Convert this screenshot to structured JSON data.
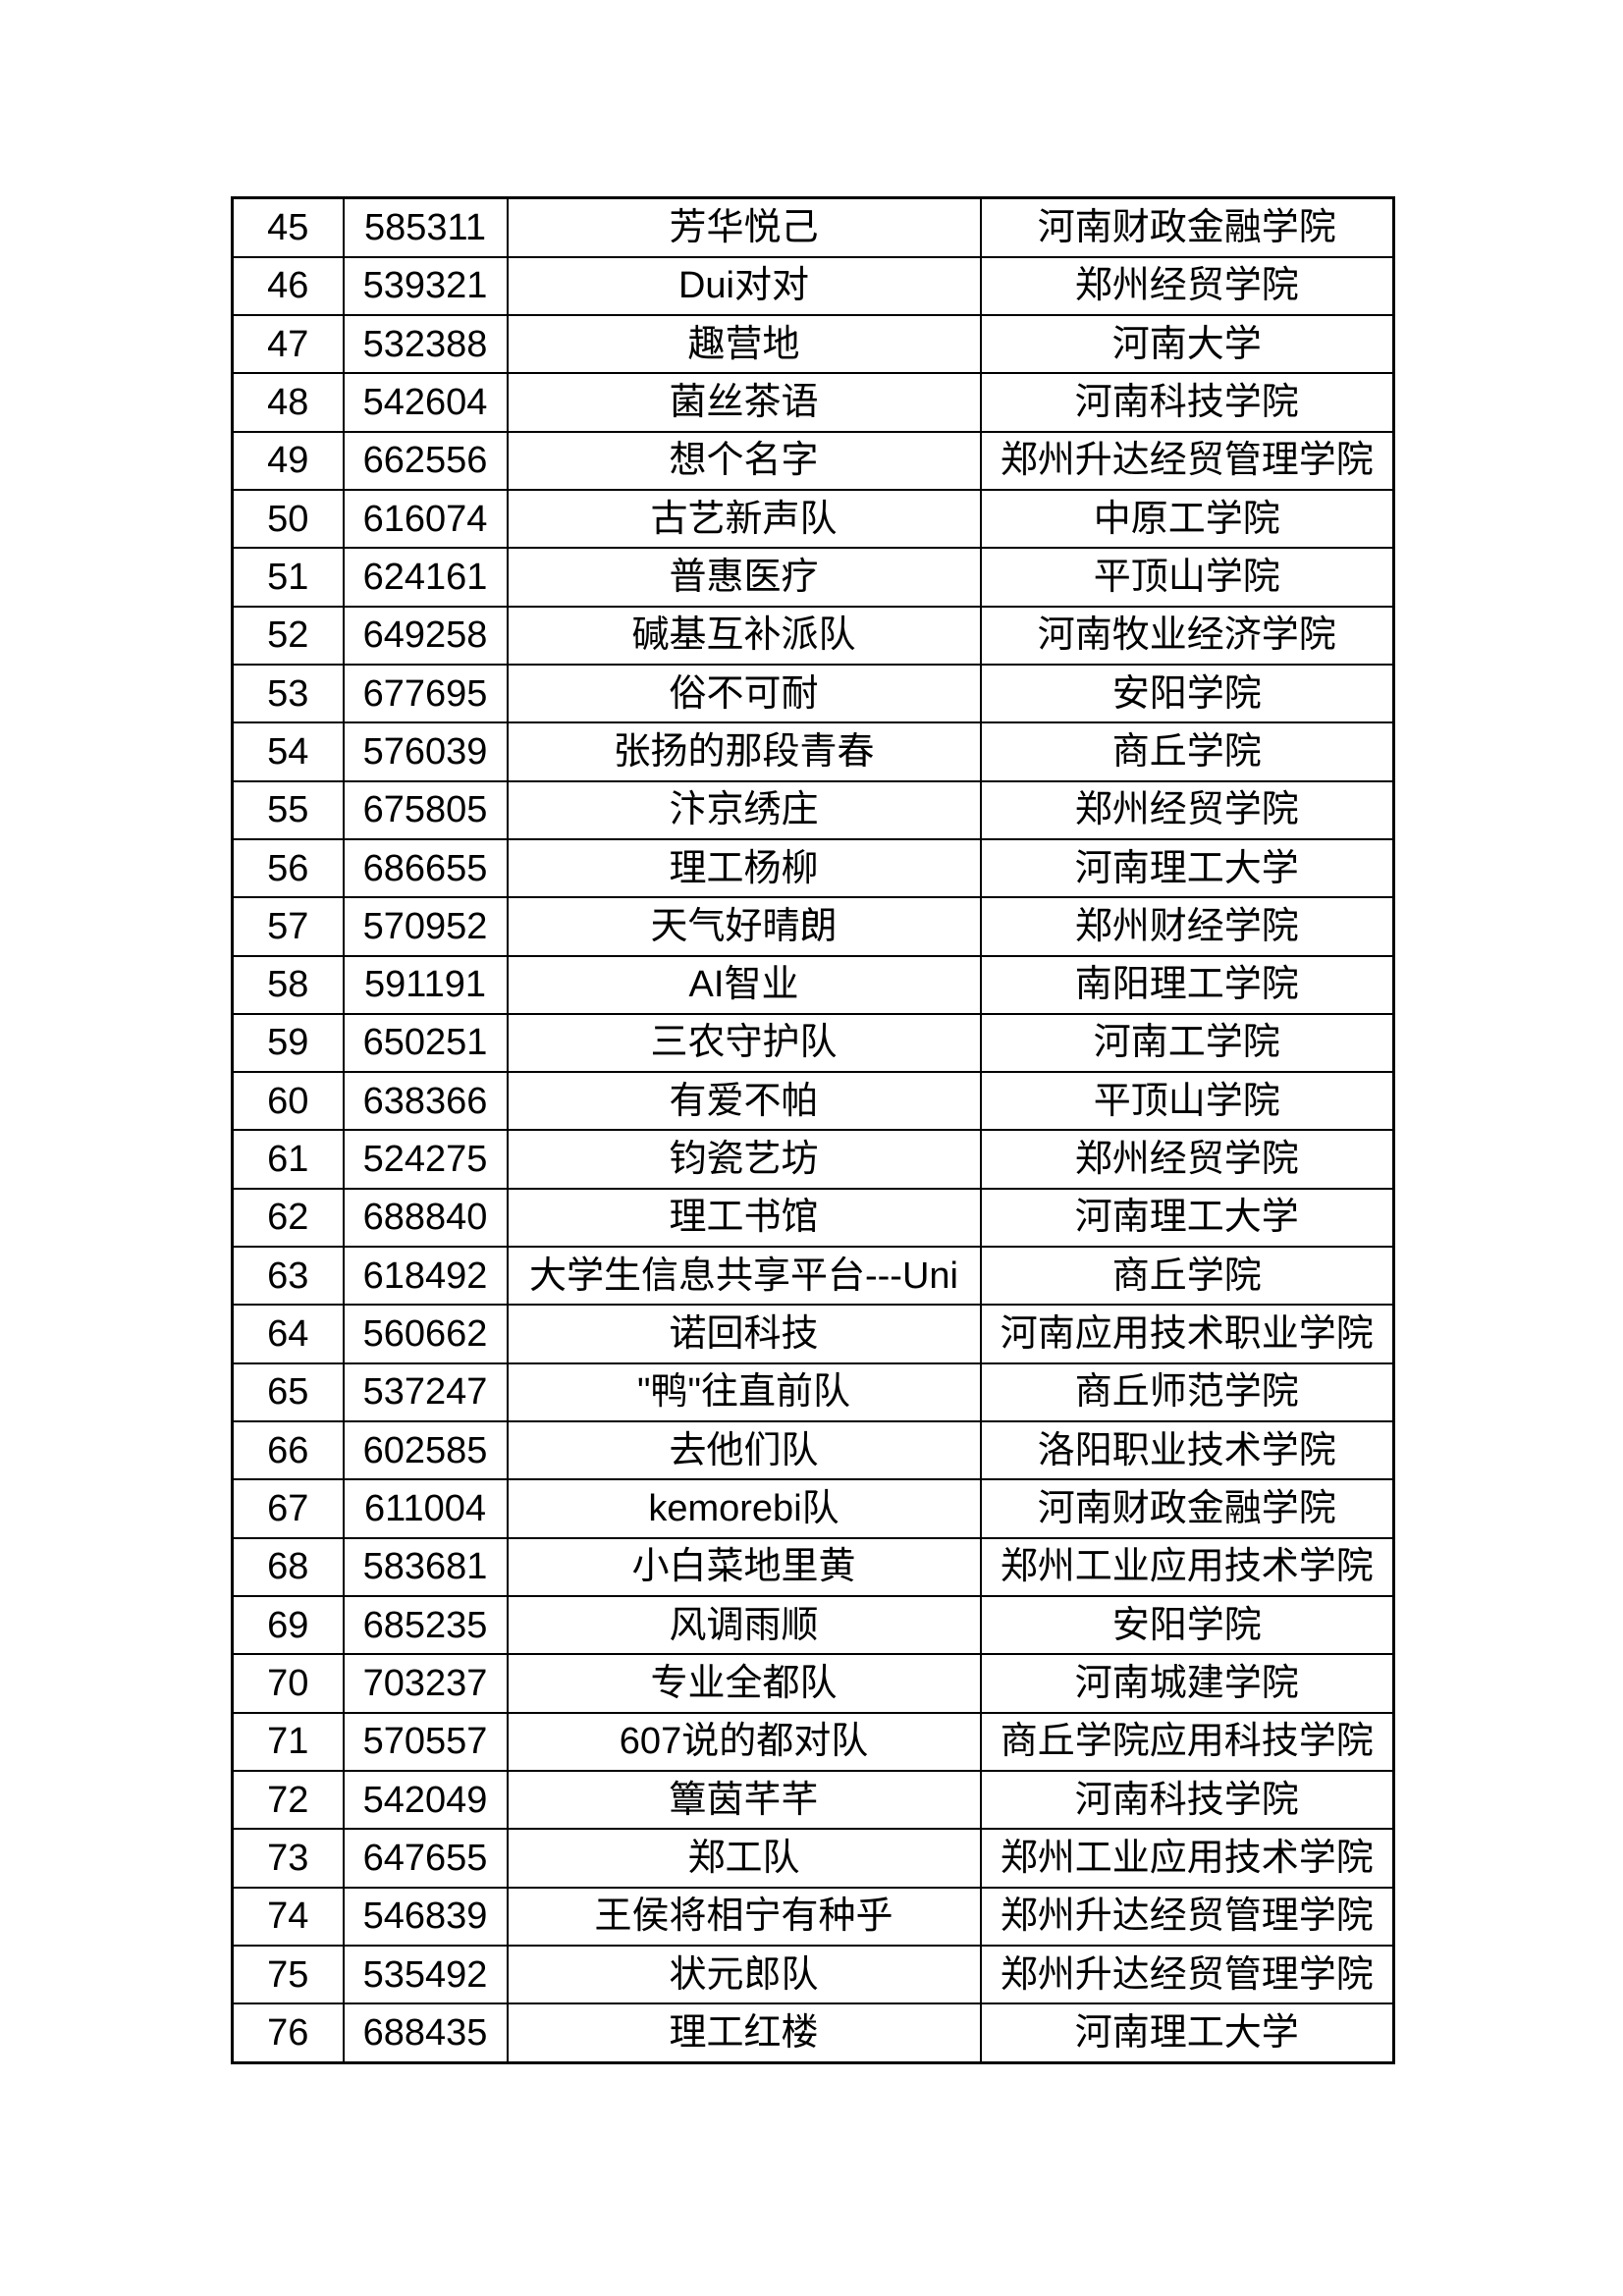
{
  "table": {
    "rows": [
      {
        "no": "45",
        "id": "585311",
        "team": "芳华悦己",
        "school": "河南财政金融学院"
      },
      {
        "no": "46",
        "id": "539321",
        "team": "Dui对对",
        "school": "郑州经贸学院"
      },
      {
        "no": "47",
        "id": "532388",
        "team": "趣营地",
        "school": "河南大学"
      },
      {
        "no": "48",
        "id": "542604",
        "team": "菌丝茶语",
        "school": "河南科技学院"
      },
      {
        "no": "49",
        "id": "662556",
        "team": "想个名字",
        "school": "郑州升达经贸管理学院"
      },
      {
        "no": "50",
        "id": "616074",
        "team": "古艺新声队",
        "school": "中原工学院"
      },
      {
        "no": "51",
        "id": "624161",
        "team": "普惠医疗",
        "school": "平顶山学院"
      },
      {
        "no": "52",
        "id": "649258",
        "team": "碱基互补派队",
        "school": "河南牧业经济学院"
      },
      {
        "no": "53",
        "id": "677695",
        "team": "俗不可耐",
        "school": "安阳学院"
      },
      {
        "no": "54",
        "id": "576039",
        "team": "张扬的那段青春",
        "school": "商丘学院"
      },
      {
        "no": "55",
        "id": "675805",
        "team": "汴京绣庄",
        "school": "郑州经贸学院"
      },
      {
        "no": "56",
        "id": "686655",
        "team": "理工杨柳",
        "school": "河南理工大学"
      },
      {
        "no": "57",
        "id": "570952",
        "team": "天气好晴朗",
        "school": "郑州财经学院"
      },
      {
        "no": "58",
        "id": "591191",
        "team": "AI智业",
        "school": "南阳理工学院"
      },
      {
        "no": "59",
        "id": "650251",
        "team": "三农守护队",
        "school": "河南工学院"
      },
      {
        "no": "60",
        "id": "638366",
        "team": "有爱不帕",
        "school": "平顶山学院"
      },
      {
        "no": "61",
        "id": "524275",
        "team": "钧瓷艺坊",
        "school": "郑州经贸学院"
      },
      {
        "no": "62",
        "id": "688840",
        "team": "理工书馆",
        "school": "河南理工大学"
      },
      {
        "no": "63",
        "id": "618492",
        "team": "大学生信息共享平台---Uni",
        "school": "商丘学院"
      },
      {
        "no": "64",
        "id": "560662",
        "team": "诺回科技",
        "school": "河南应用技术职业学院"
      },
      {
        "no": "65",
        "id": "537247",
        "team": "\"鸭\"往直前队",
        "school": "商丘师范学院"
      },
      {
        "no": "66",
        "id": "602585",
        "team": "去他们队",
        "school": "洛阳职业技术学院"
      },
      {
        "no": "67",
        "id": "611004",
        "team": "kemorebi队",
        "school": "河南财政金融学院"
      },
      {
        "no": "68",
        "id": "583681",
        "team": "小白菜地里黄",
        "school": "郑州工业应用技术学院"
      },
      {
        "no": "69",
        "id": "685235",
        "team": "风调雨顺",
        "school": "安阳学院"
      },
      {
        "no": "70",
        "id": "703237",
        "team": "专业全都队",
        "school": "河南城建学院"
      },
      {
        "no": "71",
        "id": "570557",
        "team": "607说的都对队",
        "school": "商丘学院应用科技学院"
      },
      {
        "no": "72",
        "id": "542049",
        "team": "簟茵芊芊",
        "school": "河南科技学院"
      },
      {
        "no": "73",
        "id": "647655",
        "team": "郑工队",
        "school": "郑州工业应用技术学院"
      },
      {
        "no": "74",
        "id": "546839",
        "team": "王侯将相宁有种乎",
        "school": "郑州升达经贸管理学院"
      },
      {
        "no": "75",
        "id": "535492",
        "team": "状元郎队",
        "school": "郑州升达经贸管理学院"
      },
      {
        "no": "76",
        "id": "688435",
        "team": "理工红楼",
        "school": "河南理工大学"
      }
    ]
  }
}
